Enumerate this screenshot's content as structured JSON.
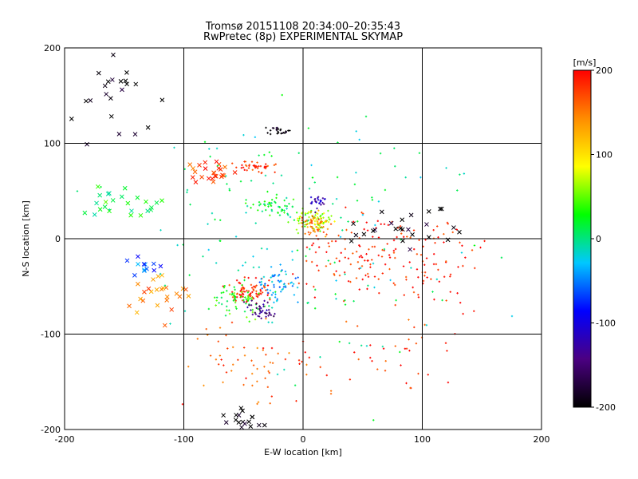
{
  "chart_data": {
    "type": "scatter",
    "title": "Tromsø 20151108 20:34:00–20:35:43",
    "subtitle": "RwPretec (8p) EXPERIMENTAL SKYMAP",
    "xlabel": "E-W location [km]",
    "ylabel": "N-S location [km]",
    "xlim": [
      -200,
      200
    ],
    "ylim": [
      -200,
      200
    ],
    "xticks": [
      "-200",
      "-100",
      "0",
      "100",
      "200"
    ],
    "yticks": [
      "-200",
      "-100",
      "0",
      "100",
      "200"
    ],
    "grid": true,
    "colorbar": {
      "label": "[m/s]",
      "range": [
        -200,
        200
      ],
      "ticks": [
        "200",
        "100",
        "0",
        "-100",
        "-200"
      ],
      "colormap": [
        "#000000",
        "#4b0082",
        "#0000ff",
        "#00c8ff",
        "#00ff00",
        "#ffff00",
        "#ff8c00",
        "#ff0000"
      ]
    },
    "marker_types": [
      "plus",
      "x"
    ],
    "clusters": [
      {
        "center": [
          -40,
          75
        ],
        "spread": [
          15,
          5
        ],
        "velocity": 180,
        "count": 40,
        "marker": "plus"
      },
      {
        "center": [
          -75,
          70
        ],
        "spread": [
          15,
          10
        ],
        "velocity": 170,
        "count": 25,
        "marker": "x"
      },
      {
        "center": [
          -20,
          112
        ],
        "spread": [
          10,
          4
        ],
        "velocity": -200,
        "count": 25,
        "marker": "plus"
      },
      {
        "center": [
          -25,
          35
        ],
        "spread": [
          15,
          8
        ],
        "velocity": 20,
        "count": 50,
        "marker": "plus"
      },
      {
        "center": [
          10,
          20
        ],
        "spread": [
          15,
          10
        ],
        "velocity": 60,
        "count": 80,
        "marker": "plus"
      },
      {
        "center": [
          10,
          15
        ],
        "spread": [
          10,
          10
        ],
        "velocity": 150,
        "count": 50,
        "marker": "plus"
      },
      {
        "center": [
          12,
          40
        ],
        "spread": [
          6,
          10
        ],
        "velocity": -120,
        "count": 25,
        "marker": "plus"
      },
      {
        "center": [
          60,
          -20
        ],
        "spread": [
          70,
          40
        ],
        "velocity": 190,
        "count": 180,
        "marker": "plus"
      },
      {
        "center": [
          80,
          10
        ],
        "spread": [
          40,
          20
        ],
        "velocity": -200,
        "count": 25,
        "marker": "x"
      },
      {
        "center": [
          -45,
          -55
        ],
        "spread": [
          15,
          10
        ],
        "velocity": 190,
        "count": 80,
        "marker": "plus"
      },
      {
        "center": [
          -20,
          -45
        ],
        "spread": [
          15,
          15
        ],
        "velocity": -40,
        "count": 60,
        "marker": "plus"
      },
      {
        "center": [
          -55,
          -65
        ],
        "spread": [
          20,
          15
        ],
        "velocity": 30,
        "count": 60,
        "marker": "plus"
      },
      {
        "center": [
          -35,
          -75
        ],
        "spread": [
          10,
          8
        ],
        "velocity": -140,
        "count": 40,
        "marker": "plus"
      },
      {
        "center": [
          -120,
          -60
        ],
        "spread": [
          20,
          20
        ],
        "velocity": 150,
        "count": 25,
        "marker": "x"
      },
      {
        "center": [
          -135,
          -30
        ],
        "spread": [
          15,
          10
        ],
        "velocity": -60,
        "count": 12,
        "marker": "x"
      },
      {
        "center": [
          -150,
          40
        ],
        "spread": [
          30,
          20
        ],
        "velocity": 20,
        "count": 25,
        "marker": "x"
      },
      {
        "center": [
          -160,
          150
        ],
        "spread": [
          30,
          40
        ],
        "velocity": -200,
        "count": 22,
        "marker": "x"
      },
      {
        "center": [
          -50,
          -130
        ],
        "spread": [
          40,
          40
        ],
        "velocity": 170,
        "count": 60,
        "marker": "plus"
      },
      {
        "center": [
          -50,
          -190
        ],
        "spread": [
          20,
          10
        ],
        "velocity": -200,
        "count": 20,
        "marker": "x"
      },
      {
        "center": [
          80,
          -120
        ],
        "spread": [
          60,
          40
        ],
        "velocity": 180,
        "count": 40,
        "marker": "plus"
      },
      {
        "center": [
          0,
          0
        ],
        "spread": [
          120,
          120
        ],
        "velocity": 0,
        "count": 160,
        "marker": "plus"
      }
    ]
  }
}
